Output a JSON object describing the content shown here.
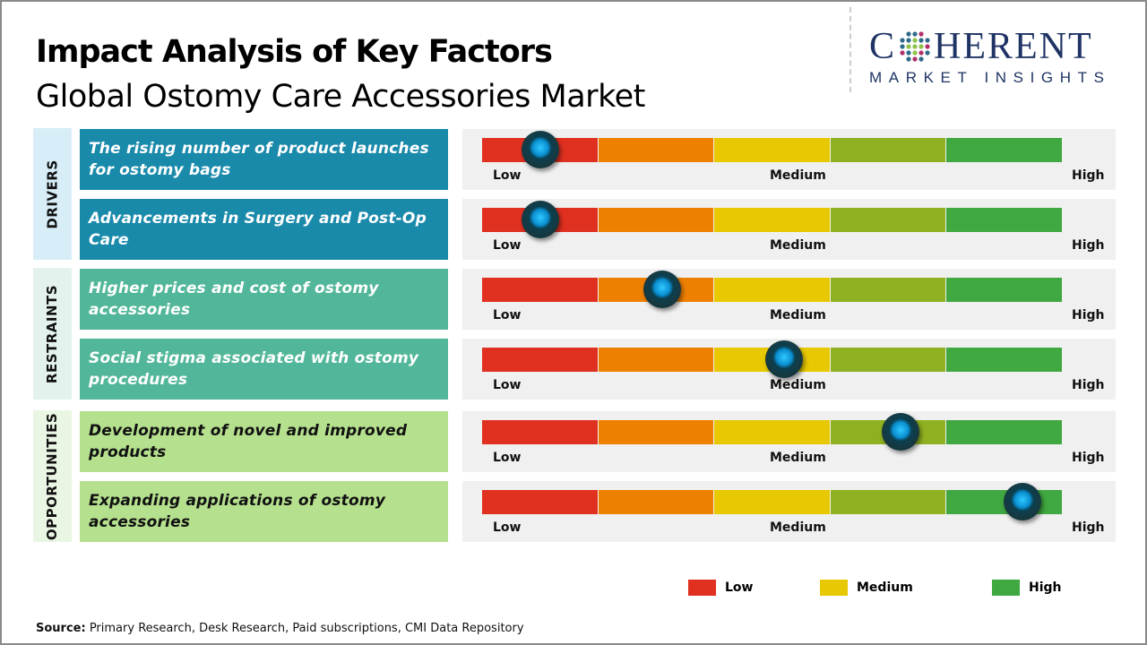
{
  "title": "Impact Analysis of Key Factors",
  "subtitle": "Global Ostomy Care Accessories Market",
  "logo": {
    "main_left": "C",
    "main_right": "HERENT",
    "tagline": "MARKET INSIGHTS",
    "icon": "dotted-globe-icon"
  },
  "colors": {
    "segments": [
      "#e03020",
      "#ee8000",
      "#e8c800",
      "#8fb020",
      "#40a840"
    ],
    "drivers": "#1a8aab",
    "restraints": "#52b79a",
    "opportunities": "#b5e08e",
    "drivers_tab": "#d7eef8",
    "restraints_tab": "#e4f2ee",
    "opportunities_tab": "#eaf6e4"
  },
  "scale_labels": {
    "low": "Low",
    "medium": "Medium",
    "high": "High"
  },
  "chart_data": {
    "type": "gauge-scale",
    "categories": [
      {
        "name": "DRIVERS",
        "factors": [
          {
            "label": "The rising number of product launches for ostomy bags",
            "impact": 0.1
          },
          {
            "label": "Advancements in Surgery and Post-Op Care",
            "impact": 0.1
          }
        ]
      },
      {
        "name": "RESTRAINTS",
        "factors": [
          {
            "label": "Higher prices and cost of ostomy accessories",
            "impact": 0.31
          },
          {
            "label": "Social stigma associated with ostomy procedures",
            "impact": 0.52
          }
        ]
      },
      {
        "name": "OPPORTUNITIES",
        "factors": [
          {
            "label": "Development of novel and improved products",
            "impact": 0.72
          },
          {
            "label": "Expanding applications of ostomy accessories",
            "impact": 0.93
          }
        ]
      }
    ],
    "legend": [
      {
        "label": "Low",
        "color": "#e03020"
      },
      {
        "label": "Medium",
        "color": "#e8c800"
      },
      {
        "label": "High",
        "color": "#40a840"
      }
    ],
    "legend_placement": "bottom-right"
  },
  "source": {
    "label": "Source:",
    "text": " Primary Research, Desk Research, Paid subscriptions, CMI Data Repository"
  }
}
